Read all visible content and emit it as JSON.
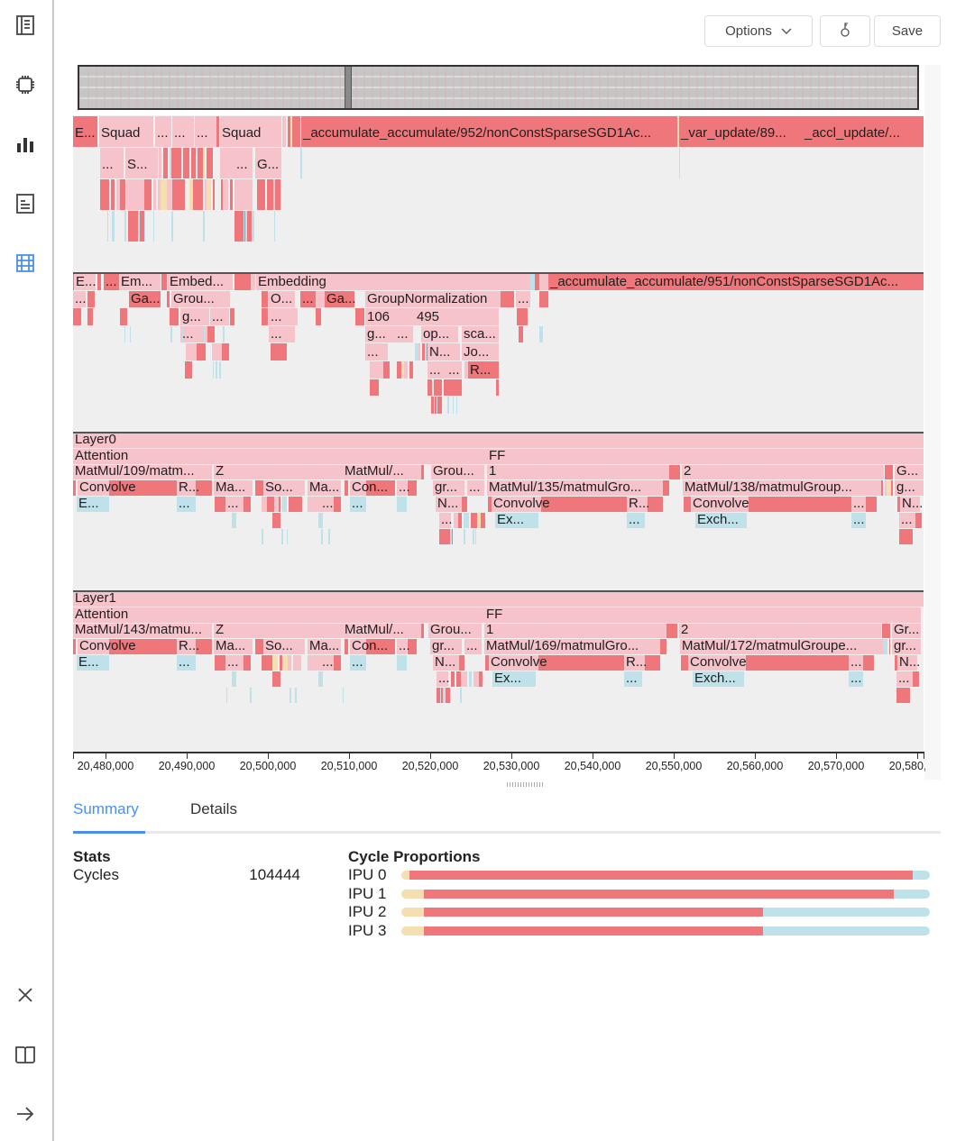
{
  "toolbar": {
    "options_label": "Options",
    "key_icon": "key-icon",
    "save_label": "Save"
  },
  "sidebar": {
    "items": [
      "summary-icon",
      "chip-icon",
      "chart-icon",
      "document-icon",
      "table-icon",
      "close-icon",
      "book-icon",
      "arrow-right-icon"
    ],
    "active": "table-icon",
    "accent": "#4a8ff0"
  },
  "colors": {
    "pink": "#f6c3cb",
    "red": "#ef777b",
    "blue": "#bfe2ea",
    "yellow": "#f5deb0"
  },
  "flame": {
    "tracks": [
      {
        "labels": [
          "E...",
          "Squad",
          "...",
          "...",
          "...",
          "Squad",
          "_accumulate_accumulate/952/nonConstSparseSGD1Ac...",
          "_var_update/89...",
          "_accl_update/...",
          "...",
          "S...",
          "...",
          "G..."
        ]
      },
      {
        "labels": [
          "E...",
          "...",
          "Em...",
          "Embed...",
          "Embedding",
          "_accumulate_accumulate/951/nonConstSparseSGD1Ac...",
          "...",
          "Ga...",
          "Grou...",
          "O...",
          "...",
          "Ga...",
          "GroupNormalization",
          "...",
          "g...",
          "...",
          "...",
          "106",
          "495",
          "...",
          "...",
          "g...",
          "...",
          "op...",
          "sca...",
          "...",
          "N...",
          "Jo...",
          "...",
          "...",
          "R..."
        ]
      },
      {
        "labels": [
          "Layer0",
          "Attention",
          "FF",
          "MatMul/109/matm...",
          "Z",
          "MatMul/...",
          "Grou...",
          "1",
          "2",
          "G...",
          "Convolve",
          "R...",
          "Ma...",
          "So...",
          "Ma...",
          "Con...",
          "...",
          "gr...",
          "...",
          "MatMul/135/matmulGro...",
          "MatMul/138/matmulGroup...",
          "g...",
          "E...",
          "...",
          "...",
          "...",
          "...",
          "N...",
          "Convolve",
          "R...",
          "Convolve",
          "...",
          "N...",
          "...",
          "Ex...",
          "...",
          "Exch...",
          "...",
          "..."
        ]
      },
      {
        "labels": [
          "Layer1",
          "Attention",
          "FF",
          "MatMul/143/matmu...",
          "Z",
          "MatMul/...",
          "Grou...",
          "1",
          "2",
          "Gr...",
          "Convolve",
          "R...",
          "Ma...",
          "So...",
          "Ma...",
          "Con...",
          "...",
          "gr...",
          "...",
          "MatMul/169/matmulGro...",
          "MatMul/172/matmulGroupe...",
          "gr...",
          "E...",
          "...",
          "...",
          "...",
          "...",
          "N...",
          "Convolve",
          "R...",
          "Convolve",
          "...",
          "N...",
          "...",
          "Ex...",
          "...",
          "Exch...",
          "...",
          "..."
        ]
      }
    ]
  },
  "axis": {
    "ticks": [
      "20,480,000",
      "20,490,000",
      "20,500,000",
      "20,510,000",
      "20,520,000",
      "20,530,000",
      "20,540,000",
      "20,550,000",
      "20,560,000",
      "20,570,000",
      "20,580,000"
    ]
  },
  "tabs": {
    "summary": "Summary",
    "details": "Details",
    "active": "Summary"
  },
  "stats": {
    "title": "Stats",
    "cycles_label": "Cycles",
    "cycles_value": "104444"
  },
  "proportions": {
    "title": "Cycle Proportions",
    "rows": [
      {
        "label": "IPU 0",
        "yellow": 1.5,
        "red": 95.2,
        "blue": 3.3
      },
      {
        "label": "IPU 1",
        "yellow": 4.3,
        "red": 88.9,
        "blue": 6.8
      },
      {
        "label": "IPU 2",
        "yellow": 4.3,
        "red": 64.1,
        "blue": 31.6
      },
      {
        "label": "IPU 3",
        "yellow": 4.3,
        "red": 64.1,
        "blue": 31.6
      }
    ]
  }
}
